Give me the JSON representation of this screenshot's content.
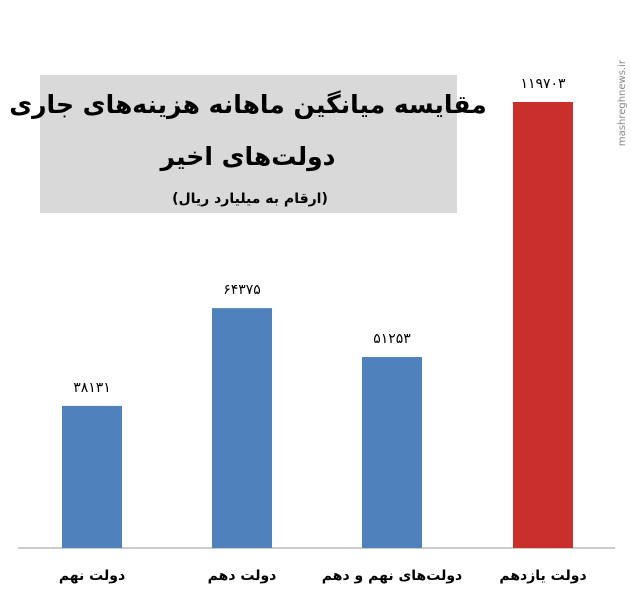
{
  "chart_data": {
    "type": "bar",
    "title": [
      "مقایسه میانگین ماهانه هزینه‌های جاری",
      "دولت‌های اخیر"
    ],
    "subtitle": "(ارقام به میلیارد ریال)",
    "categories": [
      "دولت نهم",
      "دولت دهم",
      "دولت‌های نهم و دهم",
      "دولت یازدهم"
    ],
    "values": [
      38131,
      64375,
      51253,
      119703
    ],
    "value_labels": [
      "۳۸۱۳۱",
      "۶۴۳۷۵",
      "۵۱۲۵۳",
      "۱۱۹۷۰۳"
    ],
    "colors": [
      "#4f81bd",
      "#4f81bd",
      "#4f81bd",
      "#c9302c"
    ],
    "watermark": "mashreghnews.ir"
  }
}
